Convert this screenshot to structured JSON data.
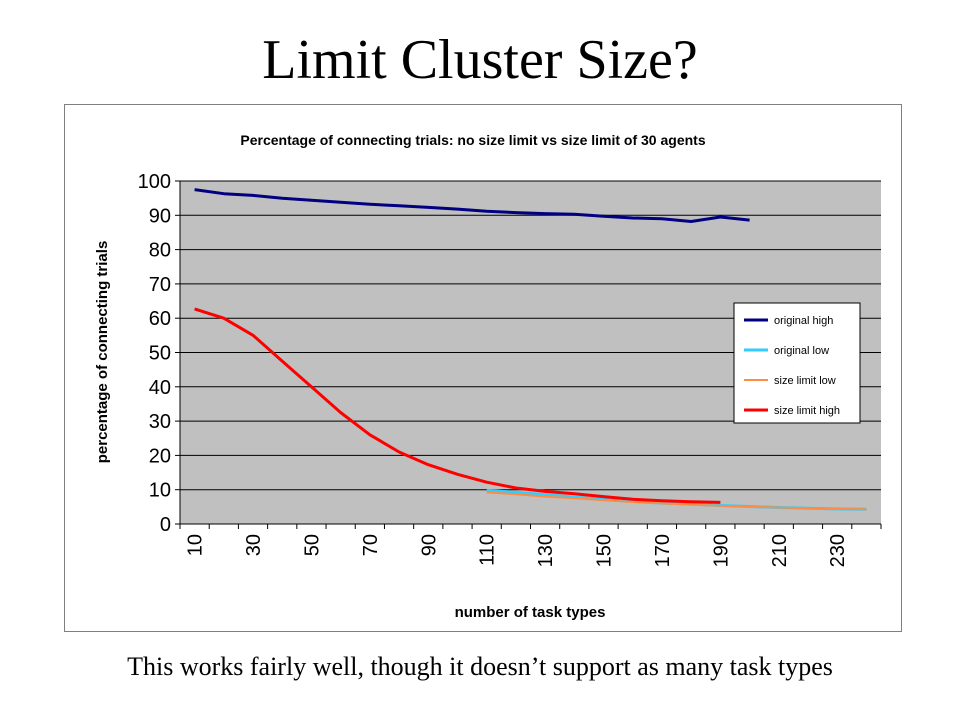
{
  "slide": {
    "title": "Limit Cluster Size?",
    "caption": "This works fairly well, though it doesn’t support as many task types"
  },
  "colors": {
    "plot_background": "#c0c0c0",
    "gridline": "#000000",
    "original_high": "#000080",
    "original_low": "#33ccff",
    "size_limit_low": "#ff8c42",
    "size_limit_high": "#ff0000"
  },
  "chart_data": {
    "type": "line",
    "title": "Percentage of connecting trials: no size limit vs size limit of 30 agents",
    "xlabel": "number of task types",
    "ylabel": "percentage of connecting trials",
    "ylim": [
      0,
      100
    ],
    "y_ticks": [
      "0",
      "10",
      "20",
      "30",
      "40",
      "50",
      "60",
      "70",
      "80",
      "90",
      "100"
    ],
    "x_range": [
      5,
      245
    ],
    "x_ticks": [
      "10",
      "30",
      "50",
      "70",
      "90",
      "110",
      "130",
      "150",
      "170",
      "190",
      "210",
      "230"
    ],
    "grid": "horizontal",
    "legend_position": "right",
    "series": [
      {
        "name": "original high",
        "color_key": "original_high",
        "points": [
          [
            10,
            97.5
          ],
          [
            20,
            96.3
          ],
          [
            30,
            95.8
          ],
          [
            40,
            95.0
          ],
          [
            50,
            94.4
          ],
          [
            60,
            93.8
          ],
          [
            70,
            93.2
          ],
          [
            80,
            92.8
          ],
          [
            90,
            92.3
          ],
          [
            100,
            91.8
          ],
          [
            110,
            91.2
          ],
          [
            120,
            90.8
          ],
          [
            130,
            90.5
          ],
          [
            140,
            90.3
          ],
          [
            150,
            89.7
          ],
          [
            160,
            89.2
          ],
          [
            170,
            89.0
          ],
          [
            180,
            88.2
          ],
          [
            190,
            89.5
          ],
          [
            200,
            88.6
          ]
        ]
      },
      {
        "name": "original low",
        "color_key": "original_low",
        "points": [
          [
            110,
            9.8
          ],
          [
            120,
            9.2
          ],
          [
            130,
            8.5
          ],
          [
            140,
            7.8
          ],
          [
            150,
            7.2
          ],
          [
            160,
            6.6
          ],
          [
            170,
            6.1
          ],
          [
            180,
            5.8
          ],
          [
            190,
            5.4
          ],
          [
            200,
            5.1
          ],
          [
            210,
            4.8
          ],
          [
            220,
            4.6
          ],
          [
            230,
            4.4
          ],
          [
            240,
            4.3
          ]
        ]
      },
      {
        "name": "size limit low",
        "color_key": "size_limit_low",
        "points": [
          [
            110,
            9.2
          ],
          [
            120,
            8.7
          ],
          [
            130,
            8.0
          ],
          [
            140,
            7.5
          ],
          [
            150,
            6.9
          ],
          [
            160,
            6.4
          ],
          [
            170,
            6.0
          ],
          [
            180,
            5.6
          ],
          [
            190,
            5.3
          ],
          [
            200,
            5.0
          ],
          [
            210,
            4.8
          ],
          [
            220,
            4.6
          ],
          [
            230,
            4.4
          ],
          [
            240,
            4.3
          ]
        ]
      },
      {
        "name": "size limit high",
        "color_key": "size_limit_high",
        "points": [
          [
            10,
            62.7
          ],
          [
            20,
            60.0
          ],
          [
            30,
            55.0
          ],
          [
            40,
            47.5
          ],
          [
            50,
            40.0
          ],
          [
            60,
            32.5
          ],
          [
            70,
            26.0
          ],
          [
            80,
            21.0
          ],
          [
            90,
            17.3
          ],
          [
            100,
            14.5
          ],
          [
            110,
            12.2
          ],
          [
            120,
            10.5
          ],
          [
            130,
            9.5
          ],
          [
            140,
            8.8
          ],
          [
            150,
            8.0
          ],
          [
            160,
            7.2
          ],
          [
            170,
            6.8
          ],
          [
            180,
            6.5
          ],
          [
            190,
            6.3
          ]
        ]
      }
    ]
  }
}
